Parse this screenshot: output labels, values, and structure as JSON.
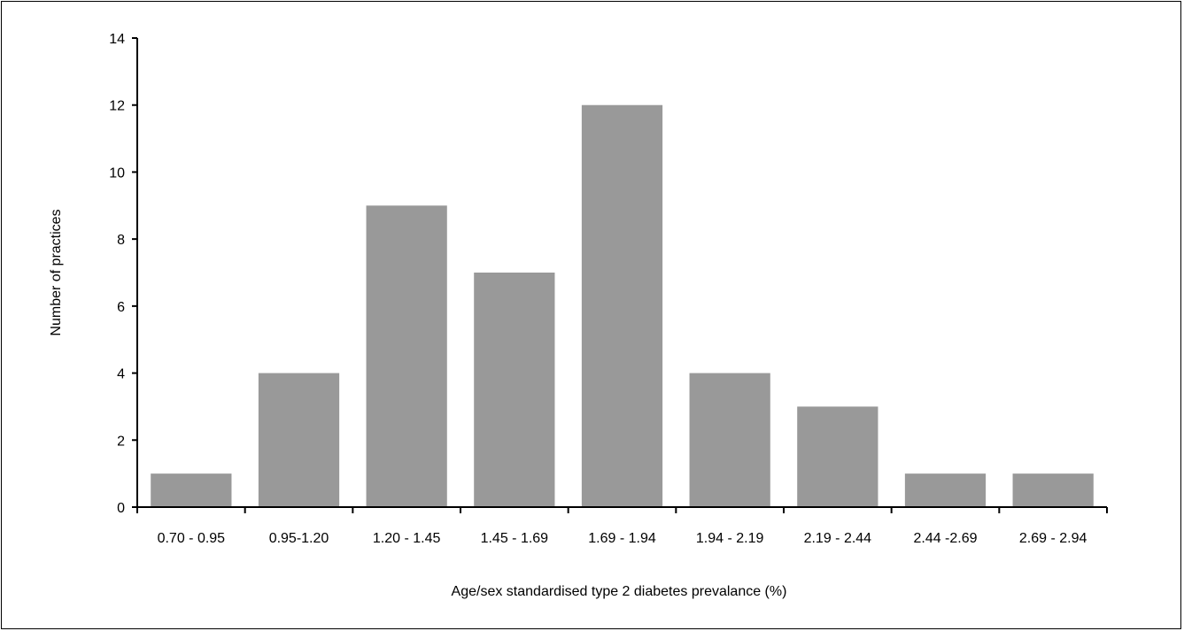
{
  "chart_data": {
    "type": "bar",
    "title": "",
    "xlabel": "Age/sex standardised type 2 diabetes prevalance (%)",
    "ylabel": "Number of practices",
    "categories": [
      "0.70 - 0.95",
      "0.95-1.20",
      "1.20 - 1.45",
      "1.45 - 1.69",
      "1.69 - 1.94",
      "1.94 - 2.19",
      "2.19 - 2.44",
      "2.44 -2.69",
      "2.69 - 2.94"
    ],
    "values": [
      1,
      4,
      9,
      7,
      12,
      4,
      3,
      1,
      1
    ],
    "ylim": [
      0,
      14
    ],
    "yticks": [
      0,
      2,
      4,
      6,
      8,
      10,
      12,
      14
    ],
    "grid": false,
    "legend": "none",
    "bar_color": "#999999",
    "axis_color": "#000000"
  }
}
